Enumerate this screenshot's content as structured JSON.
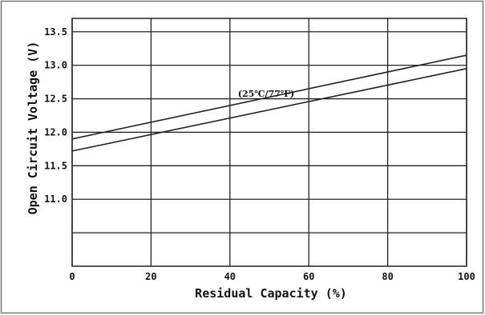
{
  "chart_data": {
    "type": "line",
    "xlabel": "Residual Capacity (%)",
    "ylabel": "Open Circuit Voltage (V)",
    "annotation": "(25℃/77℉)",
    "xlim": [
      0,
      100
    ],
    "ylim": [
      10.0,
      13.7
    ],
    "x_ticks": [
      0,
      20,
      40,
      60,
      80,
      100
    ],
    "x_tick_labels": [
      "0",
      "20",
      "40",
      "60",
      "80",
      "100"
    ],
    "y_ticks": [
      11.0,
      11.5,
      12.0,
      12.5,
      13.0,
      13.5
    ],
    "y_tick_labels": [
      "11.0",
      "11.5",
      "12.0",
      "12.5",
      "13.0",
      "13.5"
    ],
    "y_gridlines": [
      10.5,
      11.0,
      11.5,
      12.0,
      12.5,
      13.0,
      13.5
    ],
    "grid": true,
    "series": [
      {
        "x": [
          0,
          100
        ],
        "y": [
          11.9,
          13.15
        ]
      },
      {
        "x": [
          0,
          100
        ],
        "y": [
          11.72,
          12.95
        ]
      }
    ],
    "colors": {
      "line": "#222222",
      "grid": "#222222",
      "background": "#ffffff"
    }
  }
}
